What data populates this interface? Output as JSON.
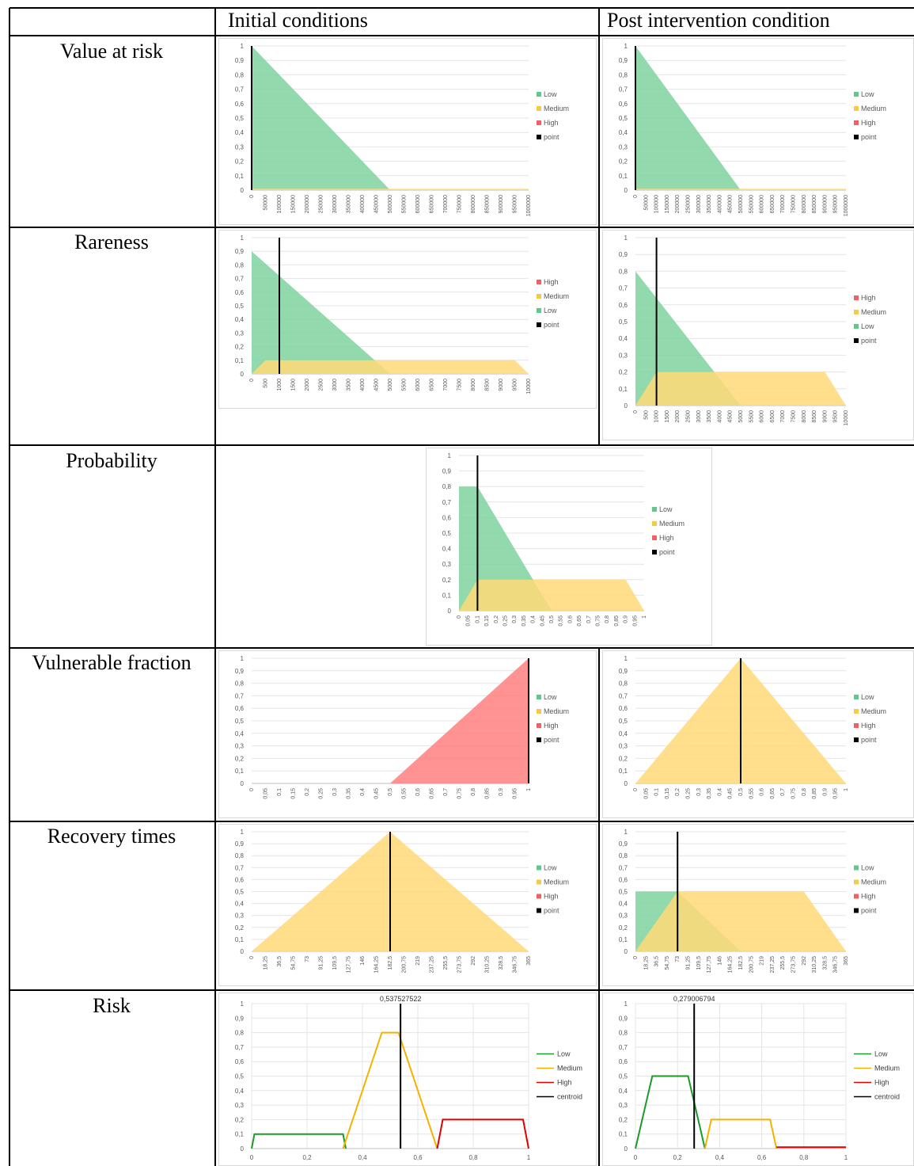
{
  "table": {
    "col_initial": "Initial conditions",
    "col_post": "Post intervention condition",
    "rows": [
      "Value at risk",
      "Rareness",
      "Probability",
      "Vulnerable fraction",
      "Recovery times",
      "Risk"
    ]
  },
  "chart_data": [
    {
      "id": "var-initial",
      "type": "area",
      "yticks": [
        "0",
        "0,1",
        "0,2",
        "0,3",
        "0,4",
        "0,5",
        "0,6",
        "0,7",
        "0,8",
        "0,9",
        "1"
      ],
      "xticks": [
        "0",
        "50000",
        "100000",
        "150000",
        "200000",
        "250000",
        "300000",
        "350000",
        "400000",
        "450000",
        "500000",
        "550000",
        "600000",
        "650000",
        "700000",
        "750000",
        "800000",
        "850000",
        "900000",
        "950000",
        "1000000"
      ],
      "xlim": [
        0,
        1000000
      ],
      "ylim": [
        0,
        1
      ],
      "legend": [
        "Low",
        "Medium",
        "High",
        "point"
      ],
      "series": [
        {
          "name": "Low",
          "color": "#7fd4a0",
          "x": [
            0,
            500000,
            1000000
          ],
          "y": [
            1,
            0,
            0
          ]
        },
        {
          "name": "Medium",
          "color": "#ffd977",
          "x": [
            0,
            1000000
          ],
          "y": [
            0.01,
            0.01
          ]
        }
      ],
      "point_x": 0,
      "point_h": 1
    },
    {
      "id": "var-post",
      "type": "area",
      "yticks": [
        "0",
        "0,1",
        "0,2",
        "0,3",
        "0,4",
        "0,5",
        "0,6",
        "0,7",
        "0,8",
        "0,9",
        "1"
      ],
      "xticks": [
        "0",
        "50000",
        "100000",
        "150000",
        "200000",
        "250000",
        "300000",
        "350000",
        "400000",
        "450000",
        "500000",
        "550000",
        "600000",
        "650000",
        "700000",
        "750000",
        "800000",
        "850000",
        "900000",
        "950000",
        "1000000"
      ],
      "xlim": [
        0,
        1000000
      ],
      "ylim": [
        0,
        1
      ],
      "legend": [
        "Low",
        "Medium",
        "High",
        "point"
      ],
      "series": [
        {
          "name": "Low",
          "color": "#7fd4a0",
          "x": [
            0,
            500000,
            1000000
          ],
          "y": [
            1,
            0,
            0
          ]
        },
        {
          "name": "Medium",
          "color": "#ffd977",
          "x": [
            0,
            1000000
          ],
          "y": [
            0.01,
            0.01
          ]
        }
      ],
      "point_x": 0,
      "point_h": 1
    },
    {
      "id": "rare-initial",
      "type": "area",
      "yticks": [
        "0",
        "0,1",
        "0,2",
        "0,3",
        "0,4",
        "0,5",
        "0,6",
        "0,7",
        "0,8",
        "0,9",
        "1"
      ],
      "xticks": [
        "0",
        "500",
        "1000",
        "1500",
        "2000",
        "2500",
        "3000",
        "3500",
        "4000",
        "4500",
        "5000",
        "5500",
        "6000",
        "6500",
        "7000",
        "7500",
        "8000",
        "8500",
        "9000",
        "9500",
        "10000"
      ],
      "xlim": [
        0,
        10000
      ],
      "ylim": [
        0,
        1
      ],
      "legend": [
        "High",
        "Medium",
        "Low",
        "point"
      ],
      "series": [
        {
          "name": "High",
          "color": "#7fd4a0",
          "x": [
            0,
            5000,
            10000
          ],
          "y": [
            0.9,
            0,
            0
          ]
        },
        {
          "name": "Medium",
          "color": "#ffd977",
          "x": [
            0,
            500,
            9500,
            10000
          ],
          "y": [
            0,
            0.1,
            0.1,
            0
          ]
        }
      ],
      "point_x": 1000,
      "point_h": 1
    },
    {
      "id": "rare-post",
      "type": "area",
      "yticks": [
        "0",
        "0,1",
        "0,2",
        "0,3",
        "0,4",
        "0,5",
        "0,6",
        "0,7",
        "0,8",
        "0,9",
        "1"
      ],
      "xticks": [
        "0",
        "500",
        "1000",
        "1500",
        "2000",
        "2500",
        "3000",
        "3500",
        "4000",
        "4500",
        "5000",
        "5500",
        "6000",
        "6500",
        "7000",
        "7500",
        "8000",
        "8500",
        "9000",
        "9500",
        "10000"
      ],
      "xlim": [
        0,
        10000
      ],
      "ylim": [
        0,
        1
      ],
      "legend": [
        "High",
        "Medium",
        "Low",
        "point"
      ],
      "series": [
        {
          "name": "High",
          "color": "#7fd4a0",
          "x": [
            0,
            5000,
            10000
          ],
          "y": [
            0.8,
            0,
            0
          ]
        },
        {
          "name": "Medium",
          "color": "#ffd977",
          "x": [
            0,
            1000,
            9000,
            10000
          ],
          "y": [
            0,
            0.2,
            0.2,
            0
          ]
        }
      ],
      "point_x": 1000,
      "point_h": 1
    },
    {
      "id": "prob",
      "type": "area",
      "yticks": [
        "0",
        "0,1",
        "0,2",
        "0,3",
        "0,4",
        "0,5",
        "0,6",
        "0,7",
        "0,8",
        "0,9",
        "1"
      ],
      "xticks": [
        "0",
        "0,05",
        "0,1",
        "0,15",
        "0,2",
        "0,25",
        "0,3",
        "0,35",
        "0,4",
        "0,45",
        "0,5",
        "0,55",
        "0,6",
        "0,65",
        "0,7",
        "0,75",
        "0,8",
        "0,85",
        "0,9",
        "0,95",
        "1"
      ],
      "xlim": [
        0,
        1
      ],
      "ylim": [
        0,
        1
      ],
      "legend": [
        "Low",
        "Medium",
        "High",
        "point"
      ],
      "series": [
        {
          "name": "Low",
          "color": "#7fd4a0",
          "x": [
            0,
            0.1,
            0.5,
            1
          ],
          "y": [
            0.8,
            0.8,
            0,
            0
          ]
        },
        {
          "name": "Medium",
          "color": "#ffd977",
          "x": [
            0,
            0.1,
            0.9,
            1
          ],
          "y": [
            0,
            0.2,
            0.2,
            0
          ]
        }
      ],
      "point_x": 0.1,
      "point_h": 1
    },
    {
      "id": "vf-initial",
      "type": "area",
      "yticks": [
        "0",
        "0,1",
        "0,2",
        "0,3",
        "0,4",
        "0,5",
        "0,6",
        "0,7",
        "0,8",
        "0,9",
        "1"
      ],
      "xticks": [
        "0",
        "0,05",
        "0,1",
        "0,15",
        "0,2",
        "0,25",
        "0,3",
        "0,35",
        "0,4",
        "0,45",
        "0,5",
        "0,55",
        "0,6",
        "0,65",
        "0,7",
        "0,75",
        "0,8",
        "0,85",
        "0,9",
        "0,95",
        "1"
      ],
      "xlim": [
        0,
        1
      ],
      "ylim": [
        0,
        1
      ],
      "legend": [
        "Low",
        "Medium",
        "High",
        "point"
      ],
      "series": [
        {
          "name": "High",
          "color": "#ff7f7f",
          "x": [
            0,
            0.5,
            1
          ],
          "y": [
            0,
            0,
            1
          ]
        }
      ],
      "point_x": 1,
      "point_h": 1
    },
    {
      "id": "vf-post",
      "type": "area",
      "yticks": [
        "0",
        "0,1",
        "0,2",
        "0,3",
        "0,4",
        "0,5",
        "0,6",
        "0,7",
        "0,8",
        "0,9",
        "1"
      ],
      "xticks": [
        "0",
        "0,05",
        "0,1",
        "0,15",
        "0,2",
        "0,25",
        "0,3",
        "0,35",
        "0,4",
        "0,45",
        "0,5",
        "0,55",
        "0,6",
        "0,65",
        "0,7",
        "0,75",
        "0,8",
        "0,85",
        "0,9",
        "0,95",
        "1"
      ],
      "xlim": [
        0,
        1
      ],
      "ylim": [
        0,
        1
      ],
      "legend": [
        "Low",
        "Medium",
        "High",
        "point"
      ],
      "series": [
        {
          "name": "Medium",
          "color": "#ffd977",
          "x": [
            0,
            0.5,
            1
          ],
          "y": [
            0,
            1,
            0
          ]
        }
      ],
      "point_x": 0.5,
      "point_h": 1
    },
    {
      "id": "rt-initial",
      "type": "area",
      "yticks": [
        "0",
        "0,1",
        "0,2",
        "0,3",
        "0,4",
        "0,5",
        "0,6",
        "0,7",
        "0,8",
        "0,9",
        "1"
      ],
      "xticks": [
        "0",
        "18,25",
        "36,5",
        "54,75",
        "73",
        "91,25",
        "109,5",
        "127,75",
        "146",
        "164,25",
        "182,5",
        "200,75",
        "219",
        "237,25",
        "255,5",
        "273,75",
        "292",
        "310,25",
        "328,5",
        "346,75",
        "365"
      ],
      "xlim": [
        0,
        365
      ],
      "ylim": [
        0,
        1
      ],
      "legend": [
        "Low",
        "Medium",
        "High",
        "point"
      ],
      "series": [
        {
          "name": "Medium",
          "color": "#ffd977",
          "x": [
            0,
            182.5,
            365
          ],
          "y": [
            0,
            1,
            0
          ]
        }
      ],
      "point_x": 182.5,
      "point_h": 1
    },
    {
      "id": "rt-post",
      "type": "area",
      "yticks": [
        "0",
        "0,1",
        "0,2",
        "0,3",
        "0,4",
        "0,5",
        "0,6",
        "0,7",
        "0,8",
        "0,9",
        "1"
      ],
      "xticks": [
        "0",
        "18,25",
        "36,5",
        "54,75",
        "73",
        "91,25",
        "109,5",
        "127,75",
        "146",
        "164,25",
        "182,5",
        "200,75",
        "219",
        "237,25",
        "255,5",
        "273,75",
        "292",
        "310,25",
        "328,5",
        "346,75",
        "365"
      ],
      "xlim": [
        0,
        365
      ],
      "ylim": [
        0,
        1
      ],
      "legend": [
        "Low",
        "Medium",
        "High",
        "point"
      ],
      "series": [
        {
          "name": "Low",
          "color": "#7fd4a0",
          "x": [
            0,
            73,
            182.5,
            365
          ],
          "y": [
            0.5,
            0.5,
            0,
            0
          ]
        },
        {
          "name": "Medium",
          "color": "#ffd977",
          "x": [
            0,
            73,
            219,
            292,
            365
          ],
          "y": [
            0,
            0.5,
            0.5,
            0.5,
            0
          ]
        }
      ],
      "point_x": 73,
      "point_h": 1
    },
    {
      "id": "risk-initial",
      "type": "line",
      "yticks": [
        "0",
        "0,1",
        "0,2",
        "0,3",
        "0,4",
        "0,5",
        "0,6",
        "0,7",
        "0,8",
        "0,9",
        "1"
      ],
      "xticks": [
        "0",
        "0,2",
        "0,4",
        "0,6",
        "0,8",
        "1"
      ],
      "xlim": [
        0,
        1
      ],
      "ylim": [
        0,
        1
      ],
      "legend": [
        "Low",
        "Medium",
        "High",
        "centroid"
      ],
      "annotation": "0,537527522",
      "series": [
        {
          "name": "Low",
          "color": "#1a9a2a",
          "x": [
            0,
            0.01,
            0.33,
            0.34
          ],
          "y": [
            0,
            0.1,
            0.1,
            0
          ]
        },
        {
          "name": "Medium",
          "color": "#f2b200",
          "x": [
            0.33,
            0.47,
            0.53,
            0.67
          ],
          "y": [
            0,
            0.8,
            0.8,
            0
          ]
        },
        {
          "name": "High",
          "color": "#e00000",
          "x": [
            0.67,
            0.69,
            0.98,
            1
          ],
          "y": [
            0,
            0.2,
            0.2,
            0
          ]
        }
      ],
      "point_x": 0.5375,
      "point_h": 1
    },
    {
      "id": "risk-post",
      "type": "line",
      "yticks": [
        "0",
        "0,1",
        "0,2",
        "0,3",
        "0,4",
        "0,5",
        "0,6",
        "0,7",
        "0,8",
        "0,9",
        "1"
      ],
      "xticks": [
        "0",
        "0,2",
        "0,4",
        "0,6",
        "0,8",
        "1"
      ],
      "xlim": [
        0,
        1
      ],
      "ylim": [
        0,
        1
      ],
      "legend": [
        "Low",
        "Medium",
        "High",
        "centroid"
      ],
      "annotation": "0,279006794",
      "series": [
        {
          "name": "Low",
          "color": "#1a9a2a",
          "x": [
            0,
            0.08,
            0.25,
            0.33
          ],
          "y": [
            0,
            0.5,
            0.5,
            0
          ]
        },
        {
          "name": "Medium",
          "color": "#f2b200",
          "x": [
            0.33,
            0.36,
            0.64,
            0.67
          ],
          "y": [
            0,
            0.2,
            0.2,
            0
          ]
        },
        {
          "name": "High",
          "color": "#e00000",
          "x": [
            0.67,
            1
          ],
          "y": [
            0.01,
            0.01
          ]
        }
      ],
      "point_x": 0.279,
      "point_h": 1
    }
  ]
}
